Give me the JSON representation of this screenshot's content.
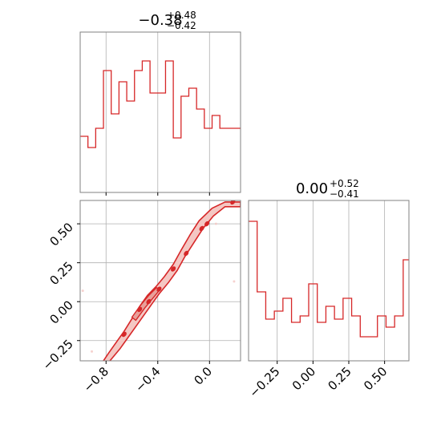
{
  "colors": {
    "series": "#d62728",
    "fill": "#f4c7c3",
    "grid": "#b0b0b0",
    "frame": "#808080"
  },
  "chart_data": [
    {
      "type": "histogram",
      "panel": "top-left marginal",
      "title": {
        "main": "−0.38",
        "plus": "+0.48",
        "minus": "−0.42"
      },
      "xlim": [
        -1.0,
        0.24
      ],
      "x_ticks": [
        -0.8,
        -0.4,
        0.0
      ],
      "bins": [
        {
          "x0": -1.0,
          "x1": -0.94,
          "v": 0.35
        },
        {
          "x0": -0.94,
          "x1": -0.88,
          "v": 0.28
        },
        {
          "x0": -0.88,
          "x1": -0.82,
          "v": 0.4
        },
        {
          "x0": -0.82,
          "x1": -0.76,
          "v": 0.76
        },
        {
          "x0": -0.76,
          "x1": -0.7,
          "v": 0.49
        },
        {
          "x0": -0.7,
          "x1": -0.64,
          "v": 0.69
        },
        {
          "x0": -0.64,
          "x1": -0.58,
          "v": 0.57
        },
        {
          "x0": -0.58,
          "x1": -0.52,
          "v": 0.76
        },
        {
          "x0": -0.52,
          "x1": -0.46,
          "v": 0.82
        },
        {
          "x0": -0.46,
          "x1": -0.4,
          "v": 0.62
        },
        {
          "x0": -0.4,
          "x1": -0.34,
          "v": 0.62
        },
        {
          "x0": -0.34,
          "x1": -0.28,
          "v": 0.82
        },
        {
          "x0": -0.28,
          "x1": -0.22,
          "v": 0.34
        },
        {
          "x0": -0.22,
          "x1": -0.16,
          "v": 0.6
        },
        {
          "x0": -0.16,
          "x1": -0.1,
          "v": 0.65
        },
        {
          "x0": -0.1,
          "x1": -0.04,
          "v": 0.52
        },
        {
          "x0": -0.04,
          "x1": 0.02,
          "v": 0.4
        },
        {
          "x0": 0.02,
          "x1": 0.08,
          "v": 0.48
        },
        {
          "x0": 0.08,
          "x1": 0.14,
          "v": 0.4
        },
        {
          "x0": 0.14,
          "x1": 0.24,
          "v": 0.4
        }
      ]
    },
    {
      "type": "contour",
      "panel": "bottom-left joint",
      "xlim": [
        -1.0,
        0.24
      ],
      "ylim": [
        -0.38,
        0.65
      ],
      "x_ticks": [
        -0.8,
        -0.4,
        0.0
      ],
      "y_ticks": [
        -0.25,
        0.0,
        0.25,
        0.5
      ],
      "outer_contour": [
        [
          -0.93,
          -0.43
        ],
        [
          -0.85,
          -0.42
        ],
        [
          -0.82,
          -0.38
        ],
        [
          -0.78,
          -0.33
        ],
        [
          -0.72,
          -0.26
        ],
        [
          -0.66,
          -0.19
        ],
        [
          -0.6,
          -0.11
        ],
        [
          -0.54,
          -0.03
        ],
        [
          -0.48,
          0.04
        ],
        [
          -0.41,
          0.1
        ],
        [
          -0.35,
          0.16
        ],
        [
          -0.28,
          0.24
        ],
        [
          -0.22,
          0.33
        ],
        [
          -0.15,
          0.43
        ],
        [
          -0.08,
          0.52
        ],
        [
          0.02,
          0.6
        ],
        [
          0.12,
          0.64
        ],
        [
          0.24,
          0.64
        ],
        [
          0.24,
          0.61
        ],
        [
          0.12,
          0.61
        ],
        [
          0.03,
          0.55
        ],
        [
          -0.05,
          0.47
        ],
        [
          -0.12,
          0.38
        ],
        [
          -0.19,
          0.29
        ],
        [
          -0.25,
          0.2
        ],
        [
          -0.32,
          0.12
        ],
        [
          -0.39,
          0.05
        ],
        [
          -0.45,
          -0.02
        ],
        [
          -0.51,
          -0.09
        ],
        [
          -0.57,
          -0.16
        ],
        [
          -0.63,
          -0.23
        ],
        [
          -0.69,
          -0.3
        ],
        [
          -0.75,
          -0.36
        ],
        [
          -0.8,
          -0.41
        ],
        [
          -0.85,
          -0.45
        ],
        [
          -0.93,
          -0.45
        ]
      ],
      "inner_contour": [
        [
          -0.6,
          -0.1
        ],
        [
          -0.53,
          -0.02
        ],
        [
          -0.47,
          0.04
        ],
        [
          -0.41,
          0.09
        ],
        [
          -0.38,
          0.08
        ],
        [
          -0.44,
          0.02
        ],
        [
          -0.5,
          -0.04
        ],
        [
          -0.57,
          -0.12
        ]
      ],
      "core_blobs": [
        [
          -0.66,
          -0.21
        ],
        [
          -0.54,
          -0.05
        ],
        [
          -0.47,
          0.0
        ],
        [
          -0.39,
          0.08
        ],
        [
          -0.28,
          0.21
        ],
        [
          -0.18,
          0.31
        ],
        [
          -0.06,
          0.47
        ],
        [
          -0.02,
          0.5
        ],
        [
          0.18,
          0.64
        ]
      ],
      "outliers": [
        [
          -0.98,
          0.07
        ],
        [
          -0.96,
          -0.39
        ],
        [
          -0.91,
          -0.32
        ],
        [
          0.05,
          0.5
        ],
        [
          0.19,
          0.13
        ]
      ]
    },
    {
      "type": "histogram",
      "panel": "bottom-right marginal",
      "title": {
        "main": "0.00",
        "plus": "+0.52",
        "minus": "−0.41"
      },
      "xlim": [
        -0.45,
        0.67
      ],
      "x_ticks": [
        -0.25,
        0.0,
        0.25,
        0.5
      ],
      "bins": [
        {
          "x0": -0.45,
          "x1": -0.39,
          "v": 0.87
        },
        {
          "x0": -0.39,
          "x1": -0.33,
          "v": 0.43
        },
        {
          "x0": -0.33,
          "x1": -0.27,
          "v": 0.26
        },
        {
          "x0": -0.27,
          "x1": -0.21,
          "v": 0.31
        },
        {
          "x0": -0.21,
          "x1": -0.15,
          "v": 0.39
        },
        {
          "x0": -0.15,
          "x1": -0.09,
          "v": 0.24
        },
        {
          "x0": -0.09,
          "x1": -0.03,
          "v": 0.28
        },
        {
          "x0": -0.03,
          "x1": 0.03,
          "v": 0.48
        },
        {
          "x0": 0.03,
          "x1": 0.09,
          "v": 0.24
        },
        {
          "x0": 0.09,
          "x1": 0.15,
          "v": 0.34
        },
        {
          "x0": 0.15,
          "x1": 0.21,
          "v": 0.26
        },
        {
          "x0": 0.21,
          "x1": 0.27,
          "v": 0.39
        },
        {
          "x0": 0.27,
          "x1": 0.33,
          "v": 0.28
        },
        {
          "x0": 0.33,
          "x1": 0.39,
          "v": 0.15
        },
        {
          "x0": 0.39,
          "x1": 0.45,
          "v": 0.15
        },
        {
          "x0": 0.45,
          "x1": 0.51,
          "v": 0.28
        },
        {
          "x0": 0.51,
          "x1": 0.57,
          "v": 0.21
        },
        {
          "x0": 0.57,
          "x1": 0.63,
          "v": 0.28
        },
        {
          "x0": 0.63,
          "x1": 0.67,
          "v": 0.63
        }
      ]
    }
  ]
}
